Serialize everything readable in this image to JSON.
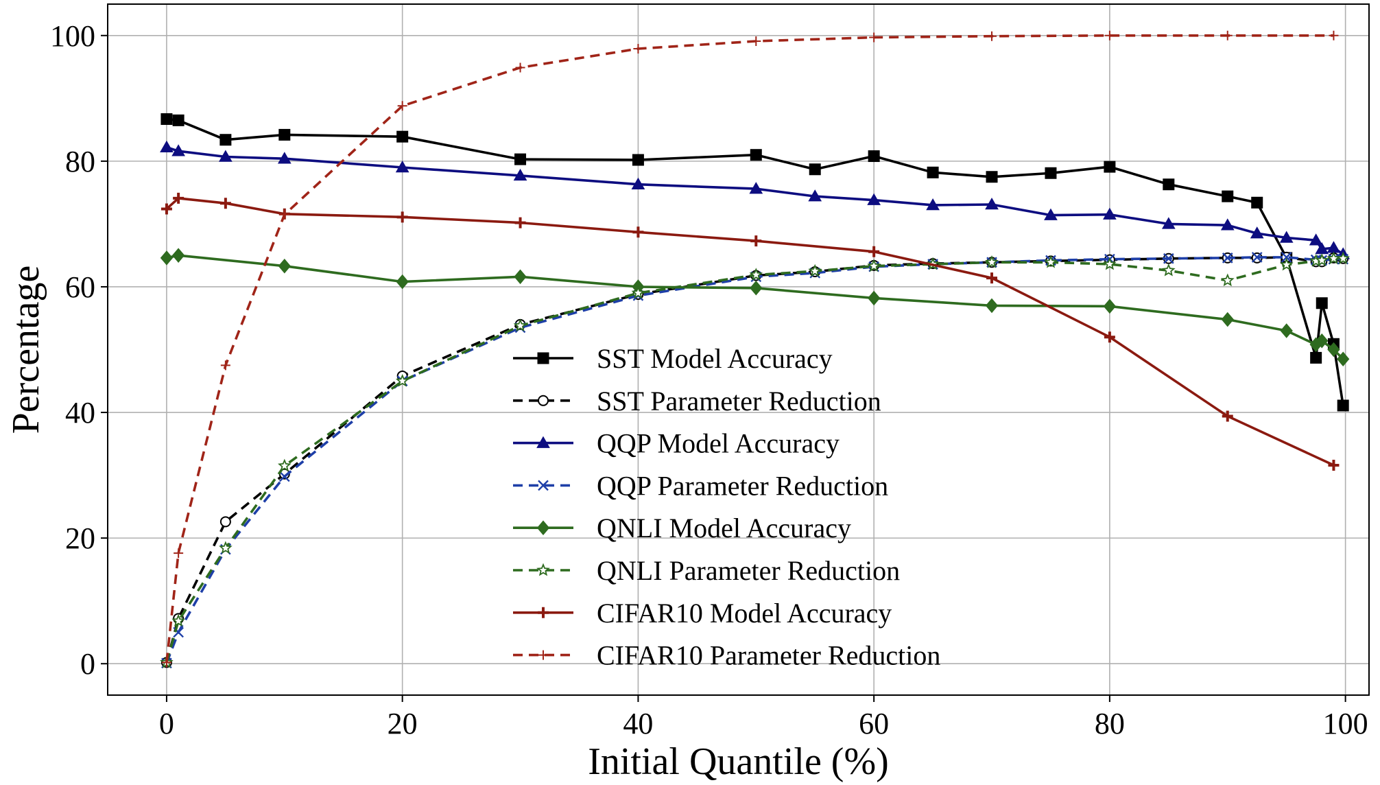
{
  "chart_data": {
    "type": "line",
    "title": "",
    "xlabel": "Initial Quantile (%)",
    "ylabel": "Percentage",
    "xlim": [
      -5,
      102
    ],
    "ylim": [
      -5,
      105
    ],
    "xticks": [
      0,
      20,
      40,
      60,
      80,
      100
    ],
    "yticks": [
      0,
      20,
      40,
      60,
      80,
      100
    ],
    "grid": true,
    "legend_position": "center-right",
    "series": [
      {
        "name": "SST Model Accuracy",
        "color": "#000000",
        "dash": "solid",
        "marker": "square",
        "points": [
          [
            0,
            86.7
          ],
          [
            1,
            86.5
          ],
          [
            5,
            83.4
          ],
          [
            10,
            84.2
          ],
          [
            20,
            83.9
          ],
          [
            30,
            80.3
          ],
          [
            40,
            80.2
          ],
          [
            50,
            81.0
          ],
          [
            55,
            78.7
          ],
          [
            60,
            80.8
          ],
          [
            65,
            78.2
          ],
          [
            70,
            77.5
          ],
          [
            75,
            78.1
          ],
          [
            80,
            79.1
          ],
          [
            85,
            76.3
          ],
          [
            90,
            74.4
          ],
          [
            92.5,
            73.4
          ],
          [
            95,
            64.6
          ],
          [
            97.5,
            48.7
          ],
          [
            98,
            57.4
          ],
          [
            99,
            50.9
          ],
          [
            99.8,
            41.1
          ]
        ]
      },
      {
        "name": "SST Parameter Reduction",
        "color": "#000000",
        "dash": "dashed",
        "marker": "circle-open",
        "points": [
          [
            0,
            0.2
          ],
          [
            1,
            7.2
          ],
          [
            5,
            22.6
          ],
          [
            10,
            30.2
          ],
          [
            20,
            45.8
          ],
          [
            30,
            54.0
          ],
          [
            40,
            58.8
          ],
          [
            50,
            61.8
          ],
          [
            55,
            62.4
          ],
          [
            60,
            63.4
          ],
          [
            65,
            63.7
          ],
          [
            70,
            63.9
          ],
          [
            75,
            64.1
          ],
          [
            80,
            64.3
          ],
          [
            85,
            64.5
          ],
          [
            90,
            64.6
          ],
          [
            92.5,
            64.6
          ],
          [
            95,
            64.7
          ],
          [
            97.5,
            64.0
          ],
          [
            98,
            64.0
          ],
          [
            99,
            64.6
          ],
          [
            99.8,
            64.5
          ]
        ]
      },
      {
        "name": "QQP Model Accuracy",
        "color": "#0d0d80",
        "dash": "solid",
        "marker": "triangle",
        "points": [
          [
            0,
            82.2
          ],
          [
            1,
            81.6
          ],
          [
            5,
            80.7
          ],
          [
            10,
            80.4
          ],
          [
            20,
            79.0
          ],
          [
            30,
            77.7
          ],
          [
            40,
            76.3
          ],
          [
            50,
            75.6
          ],
          [
            55,
            74.4
          ],
          [
            60,
            73.8
          ],
          [
            65,
            73.0
          ],
          [
            70,
            73.1
          ],
          [
            75,
            71.4
          ],
          [
            80,
            71.5
          ],
          [
            85,
            70.0
          ],
          [
            90,
            69.8
          ],
          [
            92.5,
            68.5
          ],
          [
            95,
            67.8
          ],
          [
            97.5,
            67.4
          ],
          [
            98,
            66.0
          ],
          [
            99,
            66.2
          ],
          [
            99.8,
            65.2
          ]
        ]
      },
      {
        "name": "QQP Parameter Reduction",
        "color": "#1e3fa8",
        "dash": "dashed",
        "marker": "x",
        "points": [
          [
            0,
            0.1
          ],
          [
            1,
            5.0
          ],
          [
            5,
            18.2
          ],
          [
            10,
            29.8
          ],
          [
            20,
            45.0
          ],
          [
            30,
            53.5
          ],
          [
            40,
            58.6
          ],
          [
            50,
            61.6
          ],
          [
            55,
            62.2
          ],
          [
            60,
            63.2
          ],
          [
            65,
            63.6
          ],
          [
            70,
            63.9
          ],
          [
            75,
            64.2
          ],
          [
            80,
            64.4
          ],
          [
            85,
            64.5
          ],
          [
            90,
            64.6
          ],
          [
            92.5,
            64.7
          ],
          [
            95,
            64.7
          ],
          [
            97.5,
            64.3
          ],
          [
            98,
            64.2
          ],
          [
            99,
            64.4
          ],
          [
            99.8,
            64.4
          ]
        ]
      },
      {
        "name": "QNLI Model Accuracy",
        "color": "#2e6b1f",
        "dash": "solid",
        "marker": "diamond",
        "points": [
          [
            0,
            64.6
          ],
          [
            1,
            65.0
          ],
          [
            10,
            63.3
          ],
          [
            20,
            60.8
          ],
          [
            30,
            61.6
          ],
          [
            40,
            60.0
          ],
          [
            50,
            59.8
          ],
          [
            60,
            58.2
          ],
          [
            70,
            57.0
          ],
          [
            80,
            56.9
          ],
          [
            90,
            54.8
          ],
          [
            95,
            53.0
          ],
          [
            97.5,
            50.8
          ],
          [
            98,
            51.4
          ],
          [
            99,
            50.0
          ],
          [
            99.8,
            48.5
          ]
        ]
      },
      {
        "name": "QNLI Parameter Reduction",
        "color": "#2e6b1f",
        "dash": "dashed",
        "marker": "star-open",
        "points": [
          [
            0,
            0.2
          ],
          [
            1,
            6.8
          ],
          [
            5,
            18.4
          ],
          [
            10,
            31.5
          ],
          [
            20,
            45.0
          ],
          [
            30,
            53.8
          ],
          [
            40,
            59.0
          ],
          [
            50,
            61.9
          ],
          [
            55,
            62.5
          ],
          [
            60,
            63.3
          ],
          [
            65,
            63.6
          ],
          [
            70,
            63.9
          ],
          [
            75,
            63.9
          ],
          [
            80,
            63.6
          ],
          [
            85,
            62.6
          ],
          [
            90,
            61.0
          ],
          [
            95,
            63.5
          ],
          [
            97.5,
            64.1
          ],
          [
            98,
            64.2
          ],
          [
            99,
            64.5
          ],
          [
            99.8,
            64.5
          ]
        ]
      },
      {
        "name": "CIFAR10 Model Accuracy",
        "color": "#8b1a10",
        "dash": "solid",
        "marker": "plus-bold",
        "points": [
          [
            0,
            72.4
          ],
          [
            1,
            74.1
          ],
          [
            5,
            73.3
          ],
          [
            10,
            71.6
          ],
          [
            20,
            71.1
          ],
          [
            30,
            70.2
          ],
          [
            40,
            68.7
          ],
          [
            50,
            67.3
          ],
          [
            60,
            65.6
          ],
          [
            70,
            61.4
          ],
          [
            80,
            52.0
          ],
          [
            90,
            39.4
          ],
          [
            99,
            31.6
          ]
        ]
      },
      {
        "name": "CIFAR10 Parameter Reduction",
        "color": "#a02418",
        "dash": "dashed",
        "marker": "plus",
        "points": [
          [
            0,
            0.2
          ],
          [
            1,
            17.6
          ],
          [
            5,
            47.5
          ],
          [
            10,
            71.5
          ],
          [
            20,
            88.8
          ],
          [
            30,
            94.9
          ],
          [
            40,
            97.9
          ],
          [
            50,
            99.1
          ],
          [
            60,
            99.7
          ],
          [
            70,
            99.9
          ],
          [
            80,
            100.0
          ],
          [
            90,
            100.0
          ],
          [
            99,
            100.0
          ]
        ]
      }
    ]
  }
}
